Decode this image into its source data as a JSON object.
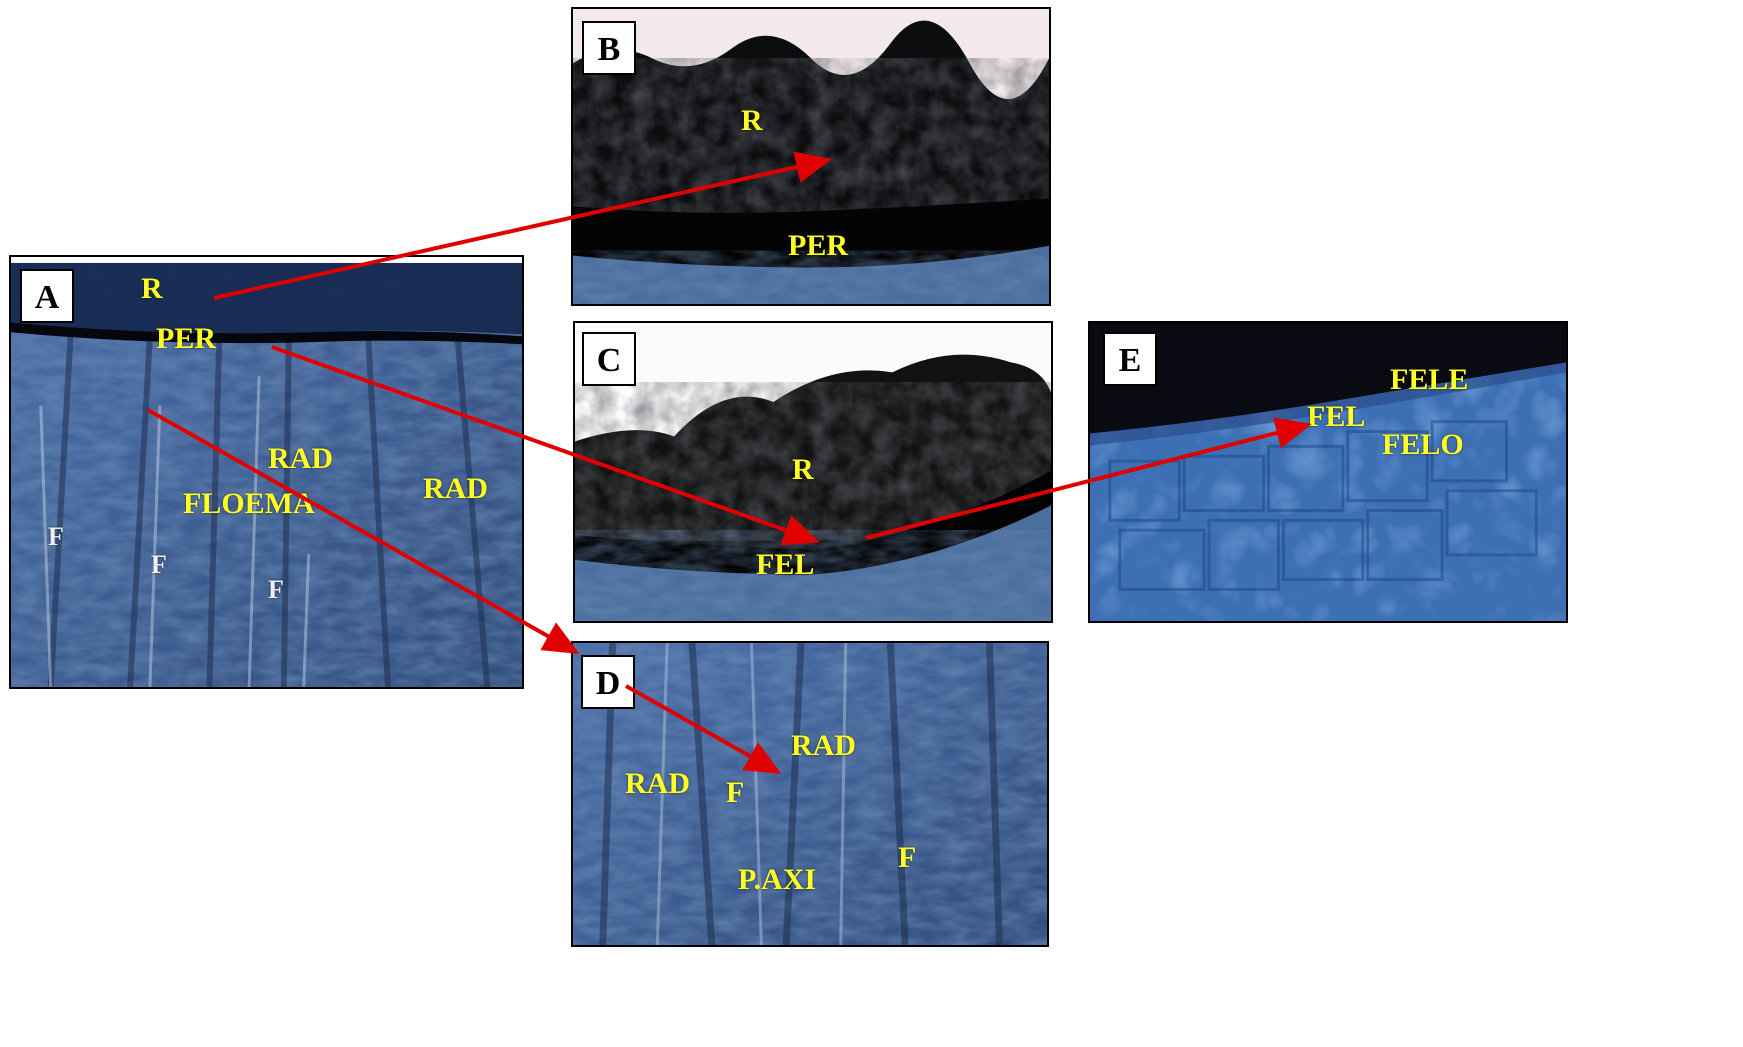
{
  "colors": {
    "label": "#ffff22",
    "arrow": "#e00000",
    "tissue_blue": "#3f5f95",
    "dark_tissue": "#0d0d10"
  },
  "panels": {
    "A": {
      "tag": "A",
      "labels": {
        "r": "R",
        "per": "PER",
        "rad1": "RAD",
        "rad2": "RAD",
        "floema": "FLOEMA",
        "f1": "F",
        "f2": "F",
        "f3": "F"
      }
    },
    "B": {
      "tag": "B",
      "labels": {
        "r": "R",
        "per": "PER"
      }
    },
    "C": {
      "tag": "C",
      "labels": {
        "r": "R",
        "fel": "FEL"
      }
    },
    "D": {
      "tag": "D",
      "labels": {
        "rad1": "RAD",
        "rad2": "RAD",
        "f1": "F",
        "f2": "F",
        "paxi": "P.AXI"
      }
    },
    "E": {
      "tag": "E",
      "labels": {
        "fele": "FELE",
        "fel": "FEL",
        "felo": "FELO"
      }
    }
  }
}
